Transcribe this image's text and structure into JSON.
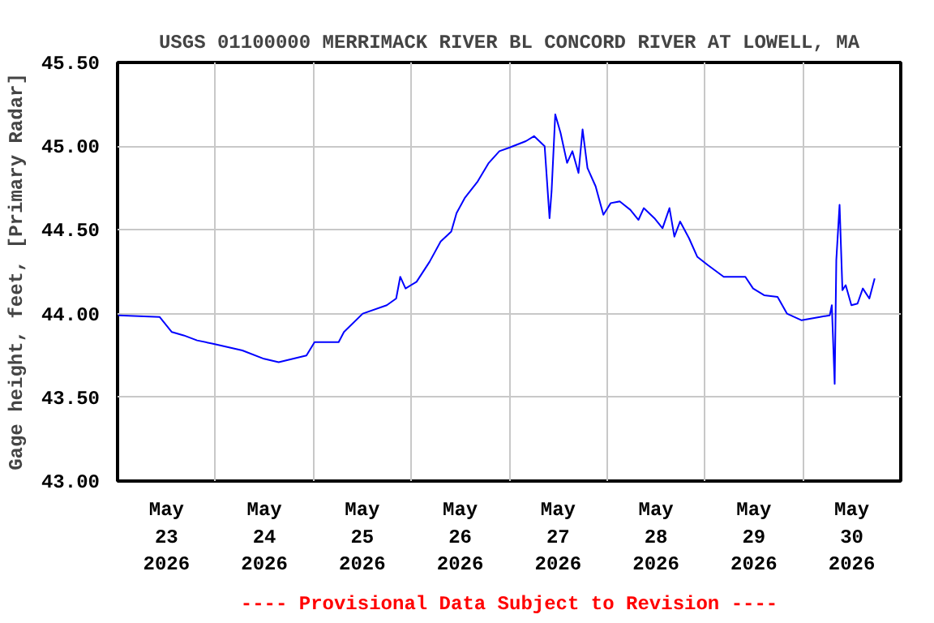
{
  "chart_data": {
    "type": "line",
    "title": "USGS 01100000 MERRIMACK RIVER BL CONCORD RIVER AT LOWELL, MA",
    "ylabel": "Gage height, feet, [Primary Radar]",
    "annotations": [
      "---- Provisional Data Subject to Revision ----"
    ],
    "x": [
      "2026-05-23T00:12",
      "2026-05-23T10:18",
      "2026-05-23T13:18",
      "2026-05-23T16:12",
      "2026-05-23T19:30",
      "2026-05-23T23:24",
      "2026-05-24T06:36",
      "2026-05-24T11:54",
      "2026-05-24T15:30",
      "2026-05-24T22:18",
      "2026-05-25T00:18",
      "2026-05-25T06:12",
      "2026-05-25T07:30",
      "2026-05-25T12:06",
      "2026-05-25T18:00",
      "2026-05-25T20:18",
      "2026-05-25T21:18",
      "2026-05-25T22:36",
      "2026-05-26T01:18",
      "2026-05-26T04:30",
      "2026-05-26T07:12",
      "2026-05-26T09:48",
      "2026-05-26T11:06",
      "2026-05-26T13:06",
      "2026-05-26T16:18",
      "2026-05-26T19:00",
      "2026-05-26T21:36",
      "2026-05-26T23:54",
      "2026-05-27T04:06",
      "2026-05-27T06:06",
      "2026-05-27T08:42",
      "2026-05-27T09:54",
      "2026-05-27T10:24",
      "2026-05-27T11:18",
      "2026-05-27T12:36",
      "2026-05-27T14:12",
      "2026-05-27T15:30",
      "2026-05-27T17:00",
      "2026-05-27T18:00",
      "2026-05-27T19:12",
      "2026-05-27T21:12",
      "2026-05-27T23:06",
      "2026-05-28T00:54",
      "2026-05-28T03:06",
      "2026-05-28T05:42",
      "2026-05-28T07:42",
      "2026-05-28T09:00",
      "2026-05-28T11:36",
      "2026-05-28T13:36",
      "2026-05-28T15:18",
      "2026-05-28T16:30",
      "2026-05-28T17:54",
      "2026-05-28T20:06",
      "2026-05-28T22:06",
      "2026-05-29T00:42",
      "2026-05-29T04:36",
      "2026-05-29T09:54",
      "2026-05-29T11:48",
      "2026-05-29T14:30",
      "2026-05-29T17:48",
      "2026-05-29T20:06",
      "2026-05-29T23:42",
      "2026-05-30T04:12",
      "2026-05-30T06:36",
      "2026-05-30T07:06",
      "2026-05-30T07:48",
      "2026-05-30T08:12",
      "2026-05-30T09:00",
      "2026-05-30T09:42",
      "2026-05-30T10:30",
      "2026-05-30T11:54",
      "2026-05-30T13:24",
      "2026-05-30T14:42",
      "2026-05-30T16:18",
      "2026-05-30T17:36"
    ],
    "series": [
      {
        "color": "#0000ff",
        "values": [
          43.99,
          43.98,
          43.89,
          43.87,
          43.84,
          43.82,
          43.78,
          43.73,
          43.71,
          43.75,
          43.83,
          43.83,
          43.89,
          44.0,
          44.05,
          44.09,
          44.22,
          44.15,
          44.19,
          44.31,
          44.43,
          44.49,
          44.6,
          44.69,
          44.79,
          44.9,
          44.97,
          44.99,
          45.03,
          45.06,
          45.0,
          44.57,
          44.73,
          45.19,
          45.08,
          44.9,
          44.97,
          44.84,
          45.1,
          44.87,
          44.76,
          44.59,
          44.66,
          44.67,
          44.62,
          44.56,
          44.63,
          44.57,
          44.51,
          44.63,
          44.46,
          44.55,
          44.45,
          44.34,
          44.29,
          44.22,
          44.22,
          44.15,
          44.11,
          44.1,
          44.0,
          43.96,
          43.98,
          43.99,
          44.05,
          43.58,
          44.32,
          44.65,
          44.14,
          44.17,
          44.05,
          44.06,
          44.15,
          44.09,
          44.21
        ]
      }
    ],
    "xlim": [
      "2026-05-23T00:00",
      "2026-05-31T00:00"
    ],
    "xticks": [
      {
        "value": "2026-05-23T12:00",
        "label": "May\n23\n2026"
      },
      {
        "value": "2026-05-24T00:00",
        "label": null
      },
      {
        "value": "2026-05-24T12:00",
        "label": "May\n24\n2026"
      },
      {
        "value": "2026-05-25T00:00",
        "label": null
      },
      {
        "value": "2026-05-25T12:00",
        "label": "May\n25\n2026"
      },
      {
        "value": "2026-05-26T00:00",
        "label": null
      },
      {
        "value": "2026-05-26T12:00",
        "label": "May\n26\n2026"
      },
      {
        "value": "2026-05-27T00:00",
        "label": null
      },
      {
        "value": "2026-05-27T12:00",
        "label": "May\n27\n2026"
      },
      {
        "value": "2026-05-28T00:00",
        "label": null
      },
      {
        "value": "2026-05-28T12:00",
        "label": "May\n28\n2026"
      },
      {
        "value": "2026-05-29T00:00",
        "label": null
      },
      {
        "value": "2026-05-29T12:00",
        "label": "May\n29\n2026"
      },
      {
        "value": "2026-05-30T00:00",
        "label": null
      },
      {
        "value": "2026-05-30T12:00",
        "label": "May\n30\n2026"
      }
    ],
    "ylim": [
      43.0,
      45.5
    ],
    "yticks": [
      {
        "value": 43.0,
        "label": "43.00"
      },
      {
        "value": 43.5,
        "label": "43.50"
      },
      {
        "value": 44.0,
        "label": "44.00"
      },
      {
        "value": 44.5,
        "label": "44.50"
      },
      {
        "value": 45.0,
        "label": "45.00"
      },
      {
        "value": 45.5,
        "label": "45.50"
      }
    ],
    "grid": true,
    "line_style": "solid"
  }
}
